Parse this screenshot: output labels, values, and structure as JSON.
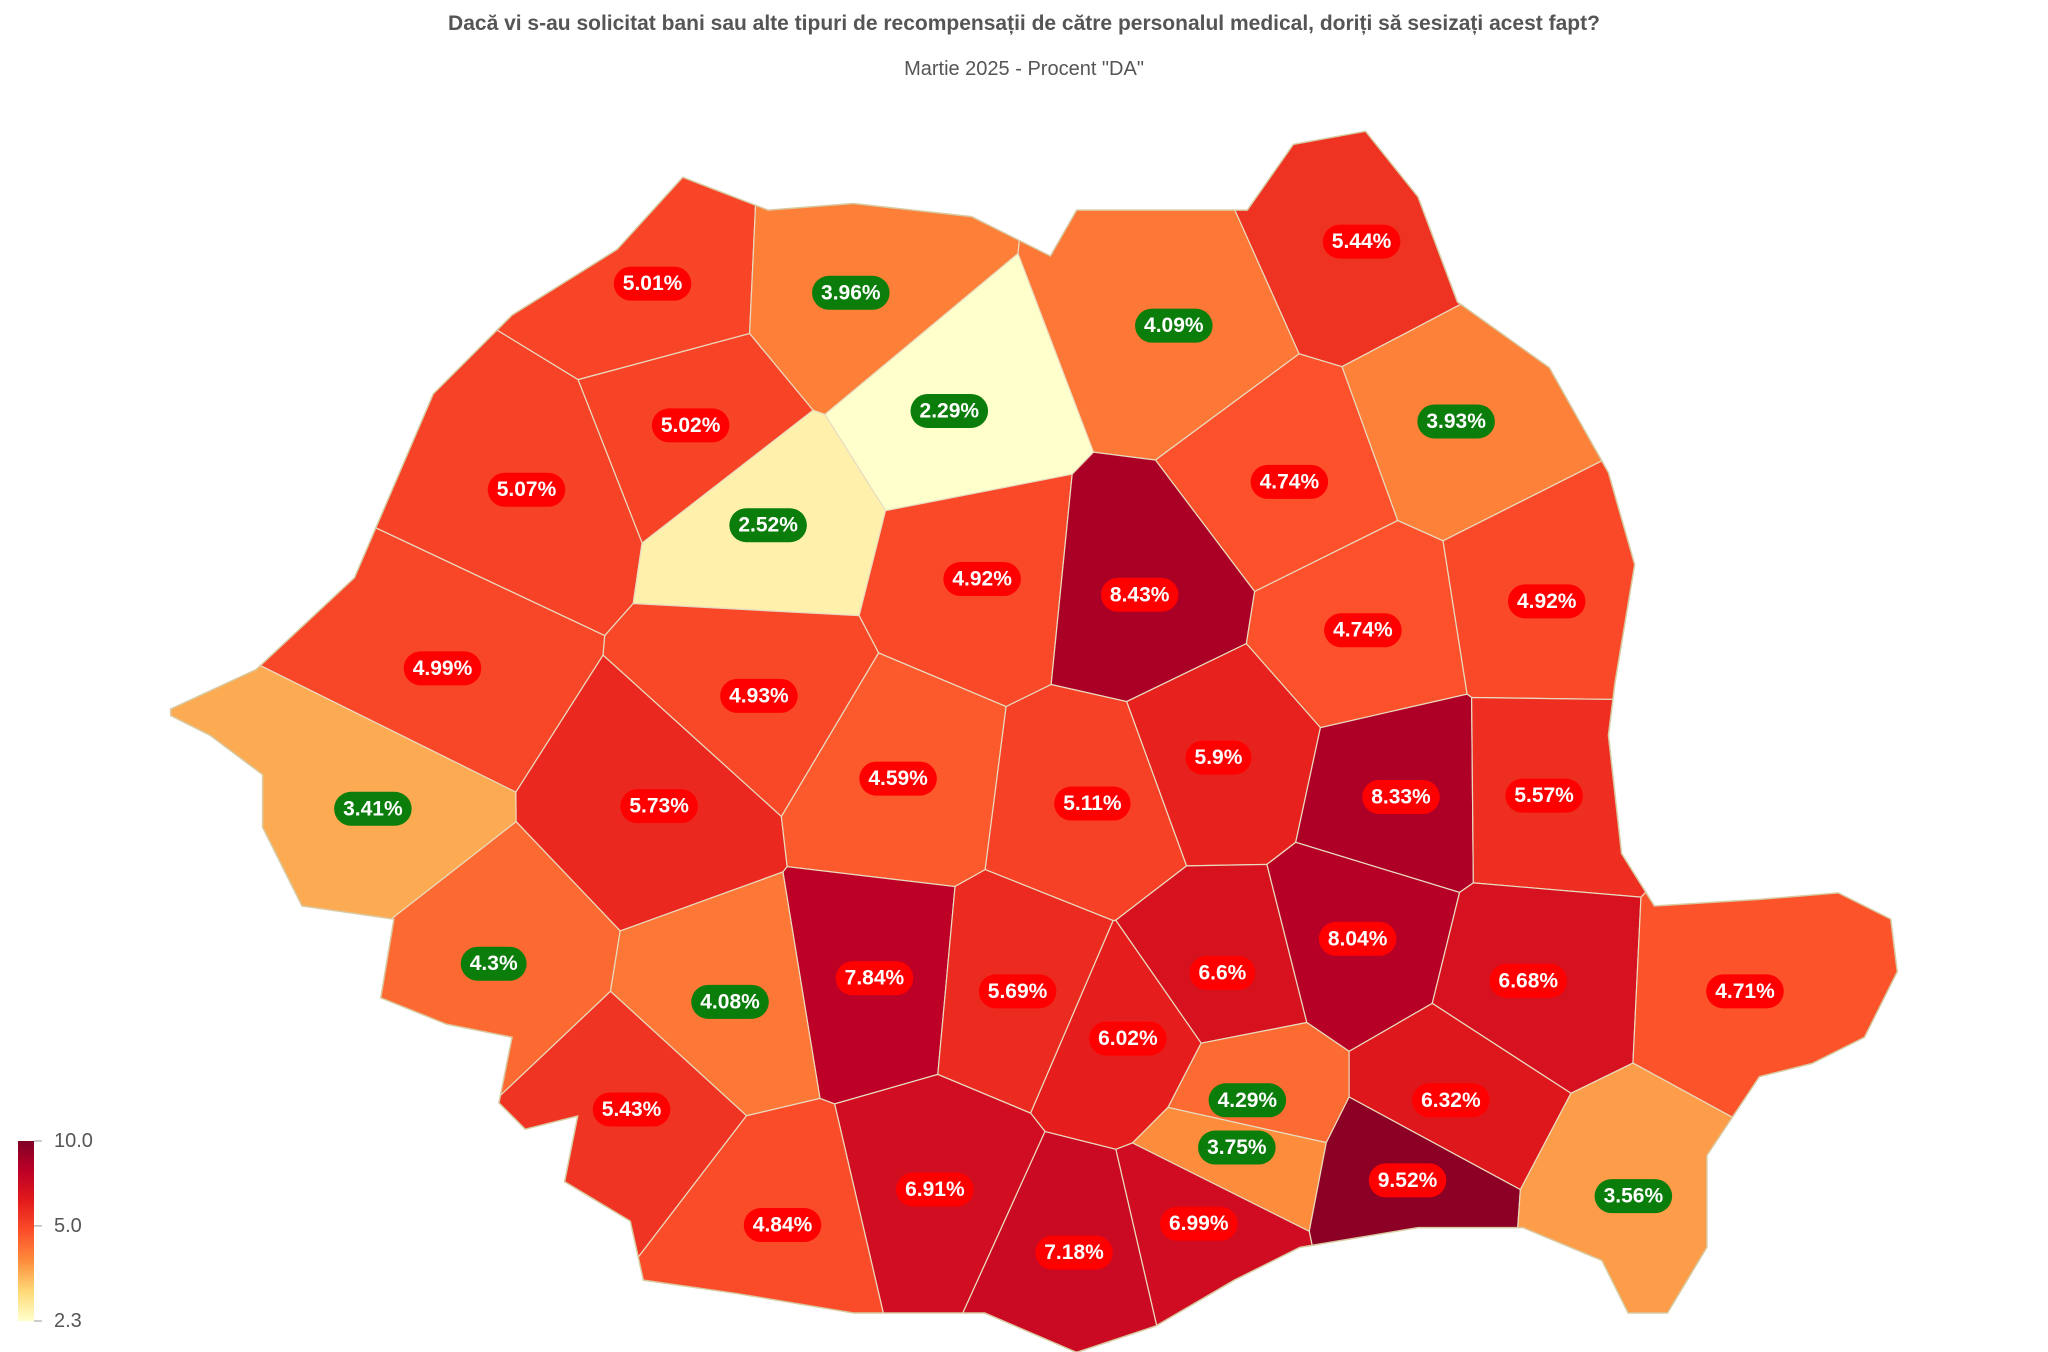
{
  "map": {
    "title": "Dacă vi s-au solicitat bani sau alte tipuri de recompensații de către personalul medical, doriți să sesizați acest fapt?",
    "subtitle": "Martie 2025 - Procent \"DA\"",
    "color_scale": [
      "#ffffcc",
      "#fed976",
      "#fd8d3c",
      "#fc4e2a",
      "#e31a1c",
      "#bd0026",
      "#800026"
    ],
    "log_scale": true,
    "legend": {
      "range": [
        2.3,
        10
      ],
      "ticks": [
        {
          "value": 10,
          "label": "10.0"
        },
        {
          "value": 5,
          "label": "5.0"
        },
        2.3
      ]
    },
    "regions": [
      {
        "value": 5.01,
        "value_label": "5.01%",
        "badge_color": "#ff0000"
      },
      {
        "value": 3.96,
        "value_label": "3.96%",
        "badge_color": "#0a7d0a"
      },
      {
        "value": 5.44,
        "value_label": "5.44%",
        "badge_color": "#ff0000"
      },
      {
        "value": 4.09,
        "value_label": "4.09%",
        "badge_color": "#0a7d0a"
      },
      {
        "value": 2.29,
        "value_label": "2.29%",
        "badge_color": "#0a7d0a"
      },
      {
        "value": 5.02,
        "value_label": "5.02%",
        "badge_color": "#ff0000"
      },
      {
        "value": 3.93,
        "value_label": "3.93%",
        "badge_color": "#0a7d0a"
      },
      {
        "value": 5.07,
        "value_label": "5.07%",
        "badge_color": "#ff0000"
      },
      {
        "value": 2.52,
        "value_label": "2.52%",
        "badge_color": "#0a7d0a"
      },
      {
        "value": 4.74,
        "value_label": "4.74%",
        "badge_color": "#ff0000"
      },
      {
        "value": 4.92,
        "value_label": "4.92%",
        "badge_color": "#ff0000"
      },
      {
        "value": 8.43,
        "value_label": "8.43%",
        "badge_color": "#ff0000"
      },
      {
        "value": 4.74,
        "value_label": "4.74%",
        "badge_color": "#ff0000"
      },
      {
        "value": 4.92,
        "value_label": "4.92%",
        "badge_color": "#ff0000"
      },
      {
        "value": 4.99,
        "value_label": "4.99%",
        "badge_color": "#ff0000"
      },
      {
        "value": 4.93,
        "value_label": "4.93%",
        "badge_color": "#ff0000"
      },
      {
        "value": 5.9,
        "value_label": "5.9%",
        "badge_color": "#ff0000"
      },
      {
        "value": 3.41,
        "value_label": "3.41%",
        "badge_color": "#0a7d0a"
      },
      {
        "value": 5.73,
        "value_label": "5.73%",
        "badge_color": "#ff0000"
      },
      {
        "value": 4.59,
        "value_label": "4.59%",
        "badge_color": "#ff0000"
      },
      {
        "value": 5.11,
        "value_label": "5.11%",
        "badge_color": "#ff0000"
      },
      {
        "value": 8.33,
        "value_label": "8.33%",
        "badge_color": "#ff0000"
      },
      {
        "value": 5.57,
        "value_label": "5.57%",
        "badge_color": "#ff0000"
      },
      {
        "value": 4.3,
        "value_label": "4.3%",
        "badge_color": "#0a7d0a"
      },
      {
        "value": 7.84,
        "value_label": "7.84%",
        "badge_color": "#ff0000"
      },
      {
        "value": 5.69,
        "value_label": "5.69%",
        "badge_color": "#ff0000"
      },
      {
        "value": 6.6,
        "value_label": "6.6%",
        "badge_color": "#ff0000"
      },
      {
        "value": 8.04,
        "value_label": "8.04%",
        "badge_color": "#ff0000"
      },
      {
        "value": 6.68,
        "value_label": "6.68%",
        "badge_color": "#ff0000"
      },
      {
        "value": 4.71,
        "value_label": "4.71%",
        "badge_color": "#ff0000"
      },
      {
        "value": 4.08,
        "value_label": "4.08%",
        "badge_color": "#0a7d0a"
      },
      {
        "value": 6.02,
        "value_label": "6.02%",
        "badge_color": "#ff0000"
      },
      {
        "value": 4.29,
        "value_label": "4.29%",
        "badge_color": "#0a7d0a"
      },
      {
        "value": 6.32,
        "value_label": "6.32%",
        "badge_color": "#ff0000"
      },
      {
        "value": 5.43,
        "value_label": "5.43%",
        "badge_color": "#ff0000"
      },
      {
        "value": 3.75,
        "value_label": "3.75%",
        "badge_color": "#0a7d0a"
      },
      {
        "value": 9.52,
        "value_label": "9.52%",
        "badge_color": "#ff0000"
      },
      {
        "value": 3.56,
        "value_label": "3.56%",
        "badge_color": "#0a7d0a"
      },
      {
        "value": 6.91,
        "value_label": "6.91%",
        "badge_color": "#ff0000"
      },
      {
        "value": 4.84,
        "value_label": "4.84%",
        "badge_color": "#ff0000"
      },
      {
        "value": 6.99,
        "value_label": "6.99%",
        "badge_color": "#ff0000"
      },
      {
        "value": 7.18,
        "value_label": "7.18%",
        "badge_color": "#ff0000"
      }
    ]
  }
}
